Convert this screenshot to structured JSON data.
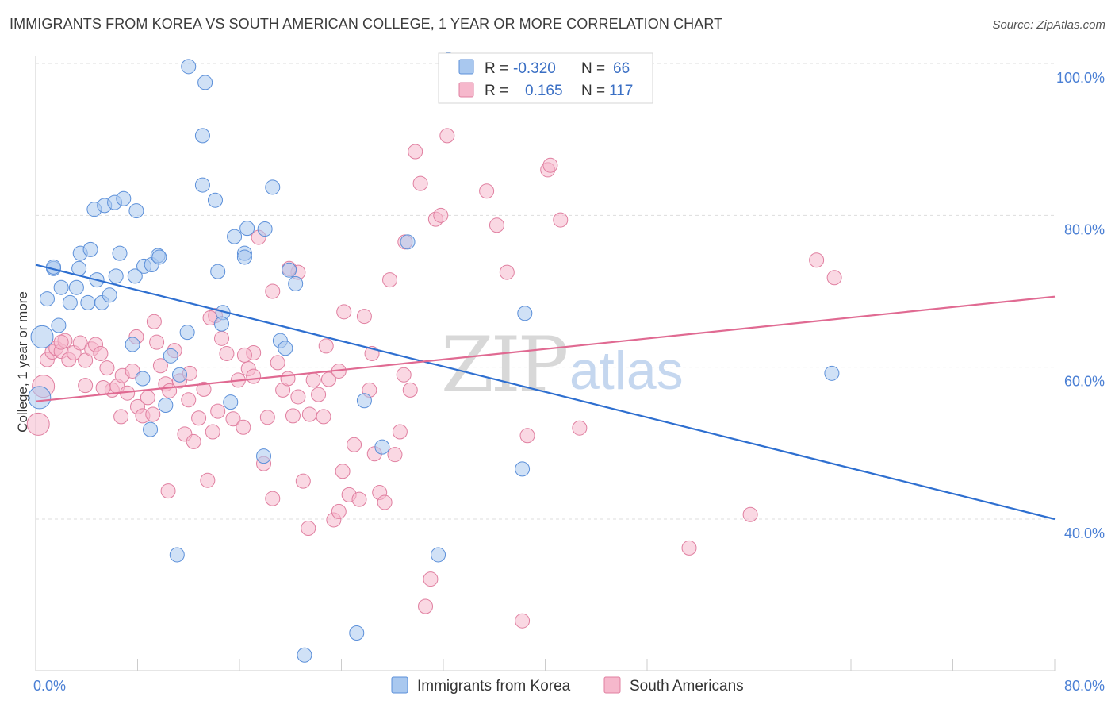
{
  "title": "IMMIGRANTS FROM KOREA VS SOUTH AMERICAN COLLEGE, 1 YEAR OR MORE CORRELATION CHART",
  "source": "Source: ZipAtlas.com",
  "watermark": {
    "zip": "ZIP",
    "atlas": "atlas"
  },
  "colors": {
    "blue_fill": "#a9c8ef",
    "blue_stroke": "#5b8fd9",
    "blue_line": "#2e6fd0",
    "pink_fill": "#f6b8cc",
    "pink_stroke": "#e07fa0",
    "pink_line": "#e06a92",
    "grid": "#dddddd",
    "tick_text": "#4a7fd4"
  },
  "legend_top": {
    "rows": [
      {
        "r_label": "R =",
        "r_value": "-0.320",
        "n_label": "N =",
        "n_value": "66"
      },
      {
        "r_label": "R =",
        "r_value": "0.165",
        "n_label": "N =",
        "n_value": "117"
      }
    ]
  },
  "chart_data": {
    "type": "scatter",
    "title": "IMMIGRANTS FROM KOREA VS SOUTH AMERICAN COLLEGE, 1 YEAR OR MORE CORRELATION CHART",
    "xlabel": "",
    "ylabel": "College, 1 year or more",
    "xlim": [
      0,
      80
    ],
    "ylim": [
      22,
      102
    ],
    "x_tick_labels": [
      "0.0%",
      "80.0%"
    ],
    "y_ticks": [
      40,
      60,
      80,
      100
    ],
    "y_tick_labels": [
      "40.0%",
      "60.0%",
      "80.0%",
      "100.0%"
    ],
    "grid": true,
    "legend_position": "top-center",
    "series": [
      {
        "name": "Immigrants from Korea",
        "R": -0.32,
        "N": 66,
        "trend": [
          [
            0,
            73.5
          ],
          [
            80,
            40.0
          ]
        ],
        "points": [
          [
            0.3,
            56.0
          ],
          [
            0.5,
            64.0
          ],
          [
            0.9,
            69.0
          ],
          [
            1.4,
            73.0
          ],
          [
            1.8,
            65.5
          ],
          [
            2.0,
            70.5
          ],
          [
            2.7,
            68.5
          ],
          [
            3.2,
            70.5
          ],
          [
            3.4,
            73.0
          ],
          [
            3.5,
            75.0
          ],
          [
            4.1,
            68.5
          ],
          [
            4.3,
            75.5
          ],
          [
            4.8,
            71.5
          ],
          [
            5.2,
            68.5
          ],
          [
            5.8,
            69.5
          ],
          [
            6.3,
            72.0
          ],
          [
            4.6,
            80.8
          ],
          [
            5.4,
            81.3
          ],
          [
            6.2,
            81.7
          ],
          [
            6.9,
            82.2
          ],
          [
            7.9,
            80.6
          ],
          [
            6.6,
            75.0
          ],
          [
            7.8,
            72.0
          ],
          [
            8.5,
            73.3
          ],
          [
            9.1,
            73.5
          ],
          [
            9.6,
            74.7
          ],
          [
            9.7,
            74.5
          ],
          [
            7.6,
            63.0
          ],
          [
            8.4,
            58.5
          ],
          [
            9.0,
            51.8
          ],
          [
            10.2,
            55.0
          ],
          [
            10.6,
            61.5
          ],
          [
            11.3,
            59.0
          ],
          [
            11.9,
            64.6
          ],
          [
            12.0,
            99.6
          ],
          [
            13.1,
            90.5
          ],
          [
            13.3,
            97.5
          ],
          [
            13.1,
            84.0
          ],
          [
            14.1,
            82.0
          ],
          [
            14.3,
            72.6
          ],
          [
            14.7,
            67.2
          ],
          [
            14.6,
            65.7
          ],
          [
            15.6,
            77.2
          ],
          [
            16.4,
            75.0
          ],
          [
            16.4,
            74.5
          ],
          [
            16.6,
            78.3
          ],
          [
            18.0,
            78.2
          ],
          [
            18.6,
            83.7
          ],
          [
            19.2,
            63.5
          ],
          [
            19.6,
            62.5
          ],
          [
            19.9,
            72.8
          ],
          [
            20.4,
            71.0
          ],
          [
            17.9,
            48.3
          ],
          [
            25.8,
            55.6
          ],
          [
            27.2,
            49.5
          ],
          [
            29.2,
            76.5
          ],
          [
            31.6,
            35.3
          ],
          [
            11.1,
            35.3
          ],
          [
            21.1,
            22.1
          ],
          [
            25.2,
            25.0
          ],
          [
            15.3,
            55.4
          ],
          [
            38.4,
            67.1
          ],
          [
            38.2,
            46.6
          ],
          [
            62.5,
            59.2
          ],
          [
            32.4,
            100.5
          ],
          [
            1.4,
            73.2
          ]
        ]
      },
      {
        "name": "South Americans",
        "R": 0.165,
        "N": 117,
        "trend": [
          [
            0,
            55.5
          ],
          [
            80,
            69.3
          ]
        ],
        "points": [
          [
            0.2,
            52.5
          ],
          [
            0.6,
            57.5
          ],
          [
            0.9,
            61.0
          ],
          [
            1.3,
            62.0
          ],
          [
            1.6,
            62.5
          ],
          [
            2.0,
            62.1
          ],
          [
            2.3,
            63.5
          ],
          [
            2.6,
            61.0
          ],
          [
            3.0,
            61.9
          ],
          [
            3.5,
            63.2
          ],
          [
            3.9,
            60.9
          ],
          [
            4.4,
            62.4
          ],
          [
            4.7,
            63.0
          ],
          [
            5.1,
            61.8
          ],
          [
            5.6,
            59.9
          ],
          [
            6.0,
            57.0
          ],
          [
            6.4,
            57.5
          ],
          [
            6.8,
            58.9
          ],
          [
            7.2,
            56.6
          ],
          [
            7.6,
            59.5
          ],
          [
            8.0,
            54.8
          ],
          [
            8.4,
            53.6
          ],
          [
            8.8,
            56.0
          ],
          [
            9.2,
            53.8
          ],
          [
            9.5,
            63.3
          ],
          [
            9.8,
            60.2
          ],
          [
            10.2,
            57.8
          ],
          [
            10.5,
            56.9
          ],
          [
            10.9,
            62.2
          ],
          [
            11.3,
            58.2
          ],
          [
            11.7,
            51.2
          ],
          [
            12.0,
            55.7
          ],
          [
            12.4,
            50.2
          ],
          [
            12.8,
            53.3
          ],
          [
            13.2,
            57.1
          ],
          [
            13.5,
            45.1
          ],
          [
            13.9,
            51.5
          ],
          [
            14.3,
            54.2
          ],
          [
            14.6,
            63.8
          ],
          [
            15.0,
            61.8
          ],
          [
            15.5,
            53.2
          ],
          [
            15.9,
            58.3
          ],
          [
            16.3,
            52.1
          ],
          [
            16.7,
            59.8
          ],
          [
            17.1,
            61.9
          ],
          [
            17.5,
            77.1
          ],
          [
            17.9,
            47.3
          ],
          [
            18.2,
            53.4
          ],
          [
            18.6,
            42.7
          ],
          [
            19.0,
            60.6
          ],
          [
            19.4,
            57.0
          ],
          [
            19.8,
            58.5
          ],
          [
            20.2,
            53.6
          ],
          [
            20.6,
            56.1
          ],
          [
            21.0,
            45.0
          ],
          [
            21.4,
            38.8
          ],
          [
            21.8,
            58.3
          ],
          [
            22.2,
            56.4
          ],
          [
            22.6,
            53.5
          ],
          [
            23.0,
            58.4
          ],
          [
            23.4,
            39.9
          ],
          [
            23.8,
            41.0
          ],
          [
            24.2,
            67.3
          ],
          [
            24.6,
            43.2
          ],
          [
            25.0,
            49.8
          ],
          [
            25.4,
            42.6
          ],
          [
            25.8,
            66.7
          ],
          [
            26.2,
            57.0
          ],
          [
            26.6,
            48.6
          ],
          [
            27.0,
            43.5
          ],
          [
            27.4,
            42.2
          ],
          [
            27.8,
            71.5
          ],
          [
            28.2,
            48.5
          ],
          [
            28.6,
            51.5
          ],
          [
            29.0,
            76.5
          ],
          [
            29.4,
            57.0
          ],
          [
            29.8,
            88.4
          ],
          [
            30.2,
            84.2
          ],
          [
            30.6,
            28.5
          ],
          [
            31.0,
            32.1
          ],
          [
            31.4,
            79.5
          ],
          [
            31.8,
            80.0
          ],
          [
            32.3,
            90.5
          ],
          [
            35.4,
            83.2
          ],
          [
            36.2,
            78.7
          ],
          [
            37.0,
            72.5
          ],
          [
            38.2,
            26.6
          ],
          [
            38.6,
            51.0
          ],
          [
            40.2,
            86.0
          ],
          [
            40.4,
            86.6
          ],
          [
            41.2,
            79.4
          ],
          [
            42.7,
            52.0
          ],
          [
            51.3,
            36.2
          ],
          [
            56.1,
            40.6
          ],
          [
            61.3,
            74.1
          ],
          [
            62.7,
            71.8
          ],
          [
            2.0,
            63.3
          ],
          [
            3.9,
            57.6
          ],
          [
            5.3,
            57.3
          ],
          [
            7.9,
            64.0
          ],
          [
            10.4,
            43.7
          ],
          [
            12.1,
            59.2
          ],
          [
            14.1,
            66.8
          ],
          [
            16.4,
            61.6
          ],
          [
            18.6,
            70.0
          ],
          [
            20.6,
            72.5
          ],
          [
            23.8,
            59.5
          ],
          [
            26.4,
            61.8
          ],
          [
            9.3,
            66.0
          ],
          [
            17.1,
            58.8
          ],
          [
            28.9,
            59.0
          ],
          [
            24.1,
            46.3
          ],
          [
            19.9,
            73.0
          ],
          [
            21.5,
            53.8
          ],
          [
            13.7,
            66.5
          ],
          [
            22.8,
            62.8
          ],
          [
            6.7,
            53.5
          ]
        ]
      }
    ]
  },
  "legend_bottom": [
    {
      "label": "Immigrants from Korea"
    },
    {
      "label": "South Americans"
    }
  ]
}
